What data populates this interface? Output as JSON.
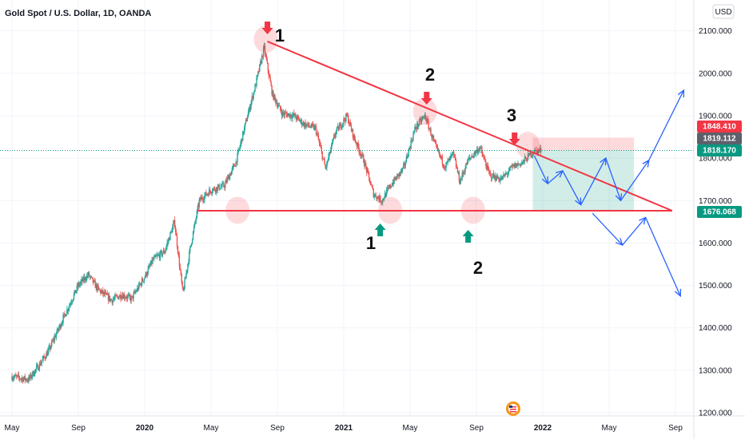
{
  "header": {
    "title": "Gold Spot / U.S. Dollar, 1D, OANDA",
    "currency_button": "USD"
  },
  "chart_data": {
    "type": "candlestick",
    "instrument": "Gold Spot / U.S. Dollar",
    "interval": "1D",
    "source": "OANDA",
    "y_axis": {
      "ylim": [
        1180,
        2170
      ],
      "ticks": [
        1200,
        1300,
        1400,
        1500,
        1600,
        1700,
        1800,
        1900,
        2000,
        2100
      ],
      "tick_labels": [
        "1200.000",
        "1300.000",
        "1400.000",
        "1500.000",
        "1600.000",
        "1700.000",
        "1800.000",
        "1900.000",
        "2000.000",
        "2100.000"
      ]
    },
    "x_axis": {
      "tick_labels": [
        "May",
        "Sep",
        "2020",
        "May",
        "Sep",
        "2021",
        "May",
        "Sep",
        "2022",
        "May",
        "Sep"
      ],
      "tick_months": [
        0,
        4,
        8,
        12,
        16,
        20,
        24,
        28,
        32,
        36,
        40
      ]
    },
    "price_path": [
      [
        0,
        1285
      ],
      [
        1,
        1278
      ],
      [
        1.6,
        1310
      ],
      [
        2.2,
        1345
      ],
      [
        3,
        1415
      ],
      [
        4,
        1500
      ],
      [
        4.6,
        1525
      ],
      [
        5.2,
        1490
      ],
      [
        6,
        1465
      ],
      [
        6.6,
        1478
      ],
      [
        7.2,
        1468
      ],
      [
        8,
        1520
      ],
      [
        8.5,
        1560
      ],
      [
        9.2,
        1580
      ],
      [
        9.8,
        1650
      ],
      [
        10.3,
        1480
      ],
      [
        10.8,
        1600
      ],
      [
        11.3,
        1700
      ],
      [
        12,
        1725
      ],
      [
        12.8,
        1735
      ],
      [
        13.5,
        1790
      ],
      [
        14.2,
        1900
      ],
      [
        14.7,
        1975
      ],
      [
        15.2,
        2060
      ],
      [
        15.7,
        1950
      ],
      [
        16.3,
        1905
      ],
      [
        17,
        1900
      ],
      [
        17.6,
        1880
      ],
      [
        18.3,
        1870
      ],
      [
        18.9,
        1775
      ],
      [
        19.5,
        1860
      ],
      [
        20.2,
        1900
      ],
      [
        20.6,
        1850
      ],
      [
        21.2,
        1795
      ],
      [
        21.8,
        1715
      ],
      [
        22.3,
        1700
      ],
      [
        22.9,
        1740
      ],
      [
        23.6,
        1775
      ],
      [
        24.3,
        1870
      ],
      [
        24.9,
        1900
      ],
      [
        25.5,
        1830
      ],
      [
        26.1,
        1780
      ],
      [
        26.6,
        1810
      ],
      [
        27,
        1745
      ],
      [
        27.5,
        1795
      ],
      [
        28.2,
        1825
      ],
      [
        28.8,
        1760
      ],
      [
        29.5,
        1750
      ],
      [
        30.2,
        1780
      ],
      [
        30.8,
        1790
      ],
      [
        31.4,
        1815
      ],
      [
        31.9,
        1818
      ]
    ],
    "price_labels": [
      {
        "value": 1848.41,
        "text": "1848.410",
        "color": "#f23645"
      },
      {
        "value": 1819.112,
        "text": "1819.112",
        "color": "#5d606b"
      },
      {
        "value": 1818.17,
        "text": "1818.170",
        "color": "#089981"
      },
      {
        "value": 1676.068,
        "text": "1676.068",
        "color": "#089981"
      }
    ],
    "current_price": 1818.17,
    "annotations": {
      "triangle_resistance": {
        "from": [
          15.4,
          2075
        ],
        "to": [
          39.8,
          1676
        ],
        "color": "#f23645"
      },
      "triangle_support": {
        "from": [
          11.2,
          1676
        ],
        "to": [
          39.8,
          1676
        ],
        "color": "#f23645"
      },
      "top_labels": [
        "1",
        "2",
        "3"
      ],
      "bottom_labels": [
        "1",
        "2"
      ],
      "touch_highlights": [
        {
          "month": 15.3,
          "price": 2080,
          "side": "top"
        },
        {
          "month": 24.9,
          "price": 1910,
          "side": "top"
        },
        {
          "month": 31.1,
          "price": 1830,
          "side": "top"
        },
        {
          "month": 13.6,
          "price": 1677,
          "side": "bottom"
        },
        {
          "month": 22.8,
          "price": 1677,
          "side": "bottom"
        },
        {
          "month": 27.8,
          "price": 1677,
          "side": "bottom"
        }
      ],
      "position": {
        "entry": 1818.17,
        "stop": 1848.41,
        "target": 1676.068,
        "start_month": 31.4,
        "end_month": 37.5
      },
      "projection_paths": [
        [
          [
            31.5,
            1805
          ],
          [
            32.3,
            1740
          ],
          [
            33.2,
            1770
          ],
          [
            34.3,
            1690
          ],
          [
            35.8,
            1800
          ],
          [
            36.7,
            1700
          ],
          [
            38.4,
            1795
          ],
          [
            40.5,
            1960
          ]
        ],
        [
          [
            35,
            1670
          ],
          [
            36.8,
            1595
          ],
          [
            38.2,
            1660
          ],
          [
            40.3,
            1475
          ]
        ]
      ],
      "projection_color": "#2962ff"
    }
  }
}
